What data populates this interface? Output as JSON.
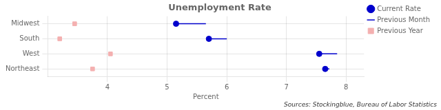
{
  "chart_data": {
    "type": "dot",
    "orientation": "horizontal",
    "title": "Unemployment Rate",
    "xlabel": "Percent",
    "annotations": [
      "Sources: Stockingblue, Bureau of Labor Statistics"
    ],
    "categories": [
      "Midwest",
      "South",
      "West",
      "Northeast"
    ],
    "series": [
      {
        "name": "Current Rate",
        "color": "#0000cc",
        "marker": "circle",
        "values": [
          5.15,
          5.7,
          7.55,
          7.65
        ]
      },
      {
        "name": "Previous Month",
        "color": "#0000cc",
        "line_style": "solid",
        "values": [
          5.65,
          6.0,
          7.85,
          7.72
        ]
      },
      {
        "name": "Previous Year",
        "color": "#f4b0b0",
        "marker": "square",
        "values": [
          3.45,
          3.2,
          4.05,
          3.75
        ]
      }
    ],
    "xlim": [
      3.0,
      8.3
    ],
    "xticks": [
      4,
      5,
      6,
      7,
      8
    ],
    "grid": true,
    "legend": "upper right"
  }
}
